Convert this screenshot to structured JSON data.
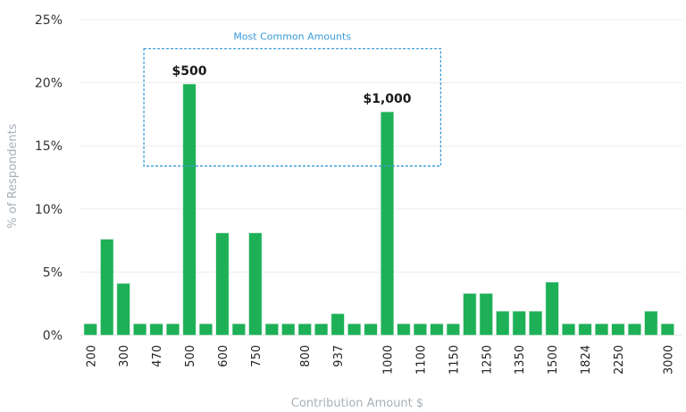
{
  "chart_data": {
    "type": "bar",
    "title": "",
    "xlabel": "Contribution Amount $",
    "ylabel": "% of Respondents",
    "ylim": [
      0,
      25
    ],
    "yticks": [
      0,
      5,
      10,
      15,
      20,
      25
    ],
    "ytick_labels": [
      "0%",
      "5%",
      "10%",
      "15%",
      "20%",
      "25%"
    ],
    "grid": true,
    "bar_color": "#1db057",
    "categories": [
      "200",
      "",
      "300",
      "",
      "470",
      "",
      "500",
      "",
      "600",
      "",
      "750",
      "",
      "",
      "800",
      "",
      "937",
      "",
      "",
      "1000",
      "",
      "1100",
      "",
      "1150",
      "",
      "1250",
      "",
      "1350",
      "",
      "1500",
      "",
      "1824",
      "",
      "2250",
      "",
      "",
      "3000"
    ],
    "values": [
      0.9,
      7.6,
      4.1,
      0.9,
      0.9,
      0.9,
      19.9,
      0.9,
      8.1,
      0.9,
      8.1,
      0.9,
      0.9,
      0.9,
      0.9,
      1.7,
      0.9,
      0.9,
      17.7,
      0.9,
      0.9,
      0.9,
      0.9,
      3.3,
      3.3,
      1.9,
      1.9,
      1.9,
      4.2,
      0.9,
      0.9,
      0.9,
      0.9,
      0.9,
      1.9,
      0.9
    ],
    "data_labels": [
      {
        "index": 6,
        "text": "$500"
      },
      {
        "index": 18,
        "text": "$1,000"
      }
    ],
    "annotation": {
      "text": "Most Common Amounts",
      "color": "#3a9ad9",
      "x_from_index": 4,
      "x_to_index": 22,
      "y_from": 13.4,
      "y_to": 22.7
    }
  }
}
